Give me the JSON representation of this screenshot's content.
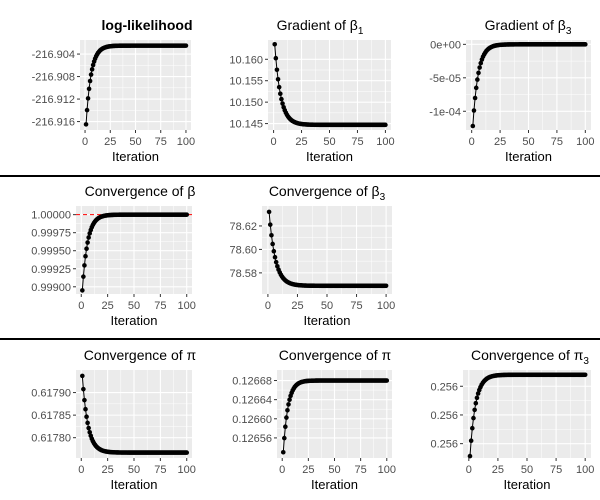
{
  "figure": {
    "background": "#ffffff",
    "panel_background": "#ebebeb",
    "grid_color": "#ffffff",
    "point_color": "#000000",
    "separator_color": "#000000",
    "reference_line_color": "#ff0000"
  },
  "chart_data": [
    {
      "id": "p1",
      "type": "scatter",
      "title": "log-likelihood",
      "title_bold": true,
      "xlabel": "Iteration",
      "ylabel": "",
      "xlim": [
        -5,
        105
      ],
      "ylim": [
        -216.9175,
        -216.9015
      ],
      "xticks": [
        0,
        25,
        50,
        75,
        100
      ],
      "xtick_labels": [
        "0",
        "25",
        "50",
        "75",
        "100"
      ],
      "yticks": [
        -216.916,
        -216.912,
        -216.908,
        -216.904
      ],
      "ytick_labels": [
        "-216.916",
        "-216.912",
        "-216.908",
        "-216.904"
      ],
      "series": [
        {
          "x_start": 1,
          "x_end": 100,
          "start": -216.9165,
          "end": -216.9025,
          "rate": 0.2
        }
      ]
    },
    {
      "id": "p2",
      "type": "scatter",
      "title": "Gradient of β",
      "title_sub": "1",
      "xlabel": "Iteration",
      "ylabel": "",
      "xlim": [
        -5,
        105
      ],
      "ylim": [
        10.1435,
        10.1645
      ],
      "xticks": [
        0,
        25,
        50,
        75,
        100
      ],
      "xtick_labels": [
        "0",
        "25",
        "50",
        "75",
        "100"
      ],
      "yticks": [
        10.145,
        10.15,
        10.155,
        10.16
      ],
      "ytick_labels": [
        "10.145",
        "10.150",
        "10.155",
        "10.160"
      ],
      "series": [
        {
          "x_start": 1,
          "x_end": 100,
          "start": 10.1635,
          "end": 10.1447,
          "rate": 0.19
        }
      ]
    },
    {
      "id": "p3",
      "type": "scatter",
      "title": "Gradient of β",
      "title_sub": "3",
      "xlabel": "Iteration",
      "ylabel": "",
      "xlim": [
        -5,
        105
      ],
      "ylim": [
        -0.000128,
        6.5e-06
      ],
      "xticks": [
        0,
        25,
        50,
        75,
        100
      ],
      "xtick_labels": [
        "0",
        "25",
        "50",
        "75",
        "100"
      ],
      "yticks": [
        -0.0001,
        -5e-05,
        0
      ],
      "ytick_labels": [
        "-1e-04",
        "-5e-05",
        "0e+00"
      ],
      "series": [
        {
          "x_start": 1,
          "x_end": 100,
          "start": -0.000122,
          "end": 0,
          "rate": 0.21
        }
      ]
    },
    {
      "id": "p4",
      "type": "scatter",
      "title": "Convergence of β",
      "title_sub": "",
      "xlabel": "Iteration",
      "ylabel": "",
      "xlim": [
        -5,
        105
      ],
      "ylim": [
        0.9989,
        1.00012
      ],
      "xticks": [
        0,
        25,
        50,
        75,
        100
      ],
      "xtick_labels": [
        "0",
        "25",
        "50",
        "75",
        "100"
      ],
      "yticks": [
        0.999,
        0.99925,
        0.9995,
        0.99975,
        1.0
      ],
      "ytick_labels": [
        "0.99900",
        "0.99925",
        "0.99950",
        "0.99975",
        "1.00000"
      ],
      "hline": 1.0,
      "series": [
        {
          "x_start": 1,
          "x_end": 100,
          "start": 0.99895,
          "end": 1.0,
          "rate": 0.2
        }
      ]
    },
    {
      "id": "p5",
      "type": "scatter",
      "title": "Convergence of β",
      "title_sub": "3",
      "xlabel": "Iteration",
      "ylabel": "",
      "xlim": [
        -5,
        105
      ],
      "ylim": [
        78.562,
        78.637
      ],
      "xticks": [
        0,
        25,
        50,
        75,
        100
      ],
      "xtick_labels": [
        "0",
        "25",
        "50",
        "75",
        "100"
      ],
      "yticks": [
        78.58,
        78.6,
        78.62
      ],
      "ytick_labels": [
        "78.58",
        "78.60",
        "78.62"
      ],
      "series": [
        {
          "x_start": 1,
          "x_end": 100,
          "start": 78.632,
          "end": 78.569,
          "rate": 0.19
        }
      ]
    },
    {
      "id": "p6",
      "type": "scatter",
      "title": "Convergence of π",
      "title_sub": "",
      "xlabel": "Iteration",
      "ylabel": "",
      "xlim": [
        -5,
        105
      ],
      "ylim": [
        0.617755,
        0.61795
      ],
      "xticks": [
        0,
        25,
        50,
        75,
        100
      ],
      "xtick_labels": [
        "0",
        "25",
        "50",
        "75",
        "100"
      ],
      "yticks": [
        0.6178,
        0.61785,
        0.6179
      ],
      "ytick_labels": [
        "0.61780",
        "0.61785",
        "0.61790"
      ],
      "series": [
        {
          "x_start": 1,
          "x_end": 100,
          "start": 0.617937,
          "end": 0.617767,
          "rate": 0.19
        }
      ]
    },
    {
      "id": "p7",
      "type": "scatter",
      "title": "Convergence of π",
      "title_sub": "",
      "xlabel": "Iteration",
      "ylabel": "",
      "xlim": [
        -5,
        105
      ],
      "ylim": [
        0.126518,
        0.126702
      ],
      "xticks": [
        0,
        25,
        50,
        75,
        100
      ],
      "xtick_labels": [
        "0",
        "25",
        "50",
        "75",
        "100"
      ],
      "yticks": [
        0.12656,
        0.1266,
        0.12664,
        0.12668
      ],
      "ytick_labels": [
        "0.12656",
        "0.12660",
        "0.12664",
        "0.12668"
      ],
      "series": [
        {
          "x_start": 1,
          "x_end": 100,
          "start": 0.12653,
          "end": 0.12668,
          "rate": 0.22
        }
      ]
    },
    {
      "id": "p8",
      "type": "scatter",
      "title": "Convergence of π",
      "title_sub": "3",
      "xlabel": "Iteration",
      "ylabel": "",
      "xlim": [
        -5,
        105
      ],
      "ylim": [
        0.25545,
        0.25637
      ],
      "xticks": [
        0,
        25,
        50,
        75,
        100
      ],
      "xtick_labels": [
        "0",
        "25",
        "50",
        "75",
        "100"
      ],
      "yticks": [
        0.2556,
        0.2559,
        0.2562
      ],
      "ytick_labels": [
        "0.256",
        "0.256",
        "0.256"
      ],
      "series": [
        {
          "x_start": 1,
          "x_end": 100,
          "start": 0.25547,
          "end": 0.25632,
          "rate": 0.21
        }
      ]
    }
  ]
}
